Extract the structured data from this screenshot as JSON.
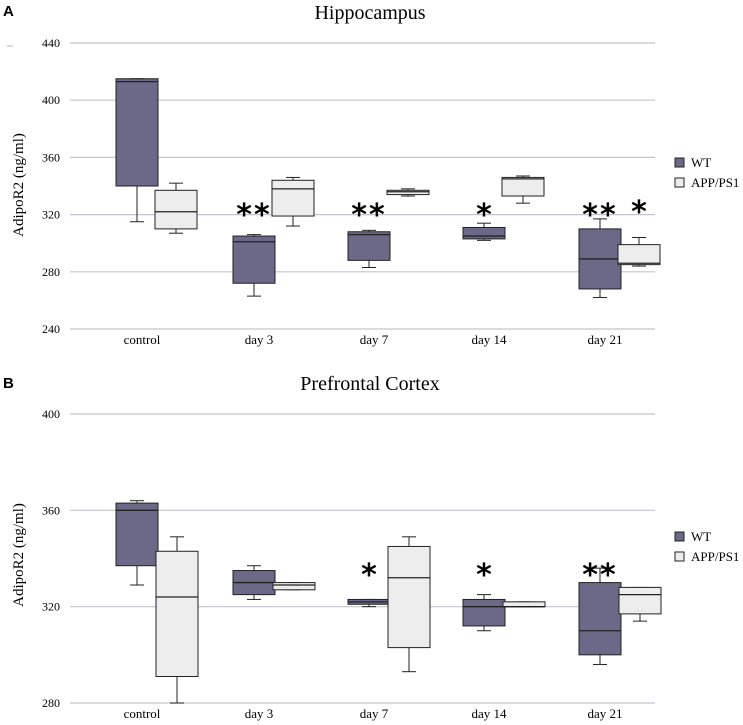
{
  "chart_data": [
    {
      "panel": "A",
      "type": "box",
      "title": "Hippocampus",
      "ylabel": "AdipoR2 (ng/ml)",
      "ylim": [
        240,
        440
      ],
      "yticks": [
        240,
        280,
        320,
        360,
        400,
        440
      ],
      "categories": [
        "control",
        "day 3",
        "day 7",
        "day 14",
        "day 21"
      ],
      "legend": [
        "WT",
        "APP/PS1"
      ],
      "series": [
        {
          "name": "WT",
          "color": "#6b6888",
          "boxes": [
            {
              "min": 315,
              "q1": 340,
              "median": 413,
              "q3": 415,
              "max": 415
            },
            {
              "min": 263,
              "q1": 272,
              "median": 301,
              "q3": 305,
              "max": 306
            },
            {
              "min": 283,
              "q1": 288,
              "median": 306,
              "q3": 308,
              "max": 309
            },
            {
              "min": 302,
              "q1": 303,
              "median": 305,
              "q3": 311,
              "max": 314
            },
            {
              "min": 262,
              "q1": 268,
              "median": 289,
              "q3": 310,
              "max": 317
            }
          ]
        },
        {
          "name": "APP/PS1",
          "color": "#ededed",
          "boxes": [
            {
              "min": 307,
              "q1": 310,
              "median": 322,
              "q3": 337,
              "max": 342
            },
            {
              "min": 312,
              "q1": 319,
              "median": 338,
              "q3": 344,
              "max": 346
            },
            {
              "min": 333,
              "q1": 334,
              "median": 336,
              "q3": 337,
              "max": 338
            },
            {
              "min": 328,
              "q1": 333,
              "median": 345,
              "q3": 346,
              "max": 347
            },
            {
              "min": 284,
              "q1": 285,
              "median": 286,
              "q3": 299,
              "max": 304
            }
          ]
        }
      ],
      "annotations": [
        {
          "series": "WT",
          "category": "day 3",
          "text": "**"
        },
        {
          "series": "WT",
          "category": "day 7",
          "text": "**"
        },
        {
          "series": "WT",
          "category": "day 14",
          "text": "*"
        },
        {
          "series": "WT",
          "category": "day 21",
          "text": "**"
        },
        {
          "series": "APP/PS1",
          "category": "day 21",
          "text": "*"
        }
      ]
    },
    {
      "panel": "B",
      "type": "box",
      "title": "Prefrontal Cortex",
      "ylabel": "AdipoR2 (ng/ml)",
      "ylim": [
        280,
        400
      ],
      "yticks": [
        280,
        320,
        360,
        400
      ],
      "categories": [
        "control",
        "day 3",
        "day 7",
        "day 14",
        "day 21"
      ],
      "legend": [
        "WT",
        "APP/PS1"
      ],
      "series": [
        {
          "name": "WT",
          "color": "#6b6888",
          "boxes": [
            {
              "min": 329,
              "q1": 337,
              "median": 360,
              "q3": 363,
              "max": 364
            },
            {
              "min": 323,
              "q1": 325,
              "median": 330,
              "q3": 335,
              "max": 337
            },
            {
              "min": 320,
              "q1": 321,
              "median": 322,
              "q3": 323,
              "max": 323
            },
            {
              "min": 310,
              "q1": 312,
              "median": 320,
              "q3": 323,
              "max": 325
            },
            {
              "min": 296,
              "q1": 300,
              "median": 310,
              "q3": 330,
              "max": 336
            }
          ]
        },
        {
          "name": "APP/PS1",
          "color": "#ededed",
          "boxes": [
            {
              "min": 280,
              "q1": 291,
              "median": 324,
              "q3": 343,
              "max": 349
            },
            {
              "min": 327,
              "q1": 327,
              "median": 329,
              "q3": 330,
              "max": 330
            },
            {
              "min": 293,
              "q1": 303,
              "median": 332,
              "q3": 345,
              "max": 349
            },
            {
              "min": 320,
              "q1": 320,
              "median": 320,
              "q3": 322,
              "max": 322
            },
            {
              "min": 314,
              "q1": 317,
              "median": 325,
              "q3": 328,
              "max": 328
            }
          ]
        }
      ],
      "annotations": [
        {
          "series": "WT",
          "category": "day 7",
          "text": "*"
        },
        {
          "series": "WT",
          "category": "day 14",
          "text": "*"
        },
        {
          "series": "WT",
          "category": "day 21",
          "text": "**"
        }
      ]
    }
  ]
}
